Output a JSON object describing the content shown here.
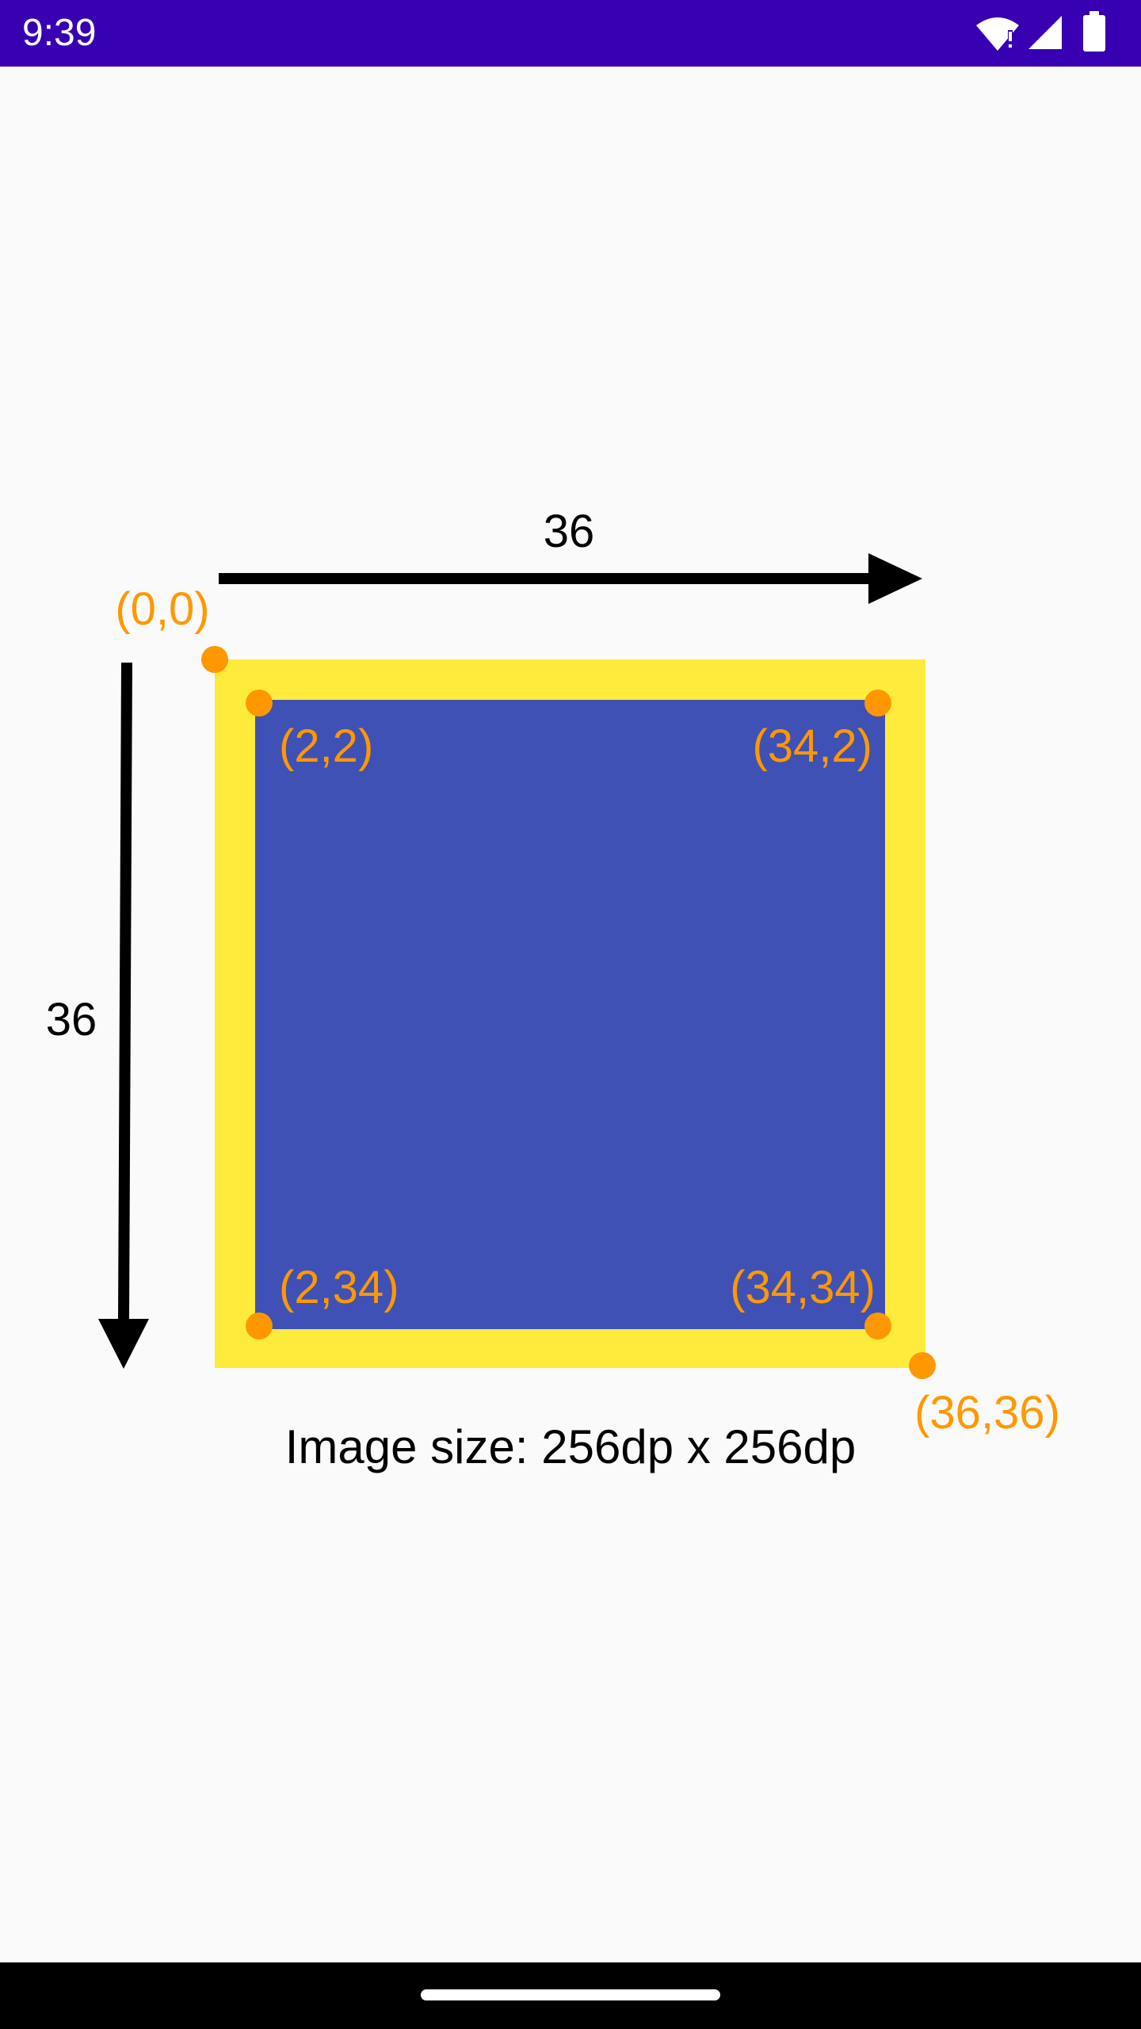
{
  "status_bar": {
    "time": "9:39",
    "icons": [
      "wifi-icon",
      "signal-icon",
      "battery-icon"
    ],
    "background_color": "#3700b3"
  },
  "diagram": {
    "outer_square_color": "#ffeb3b",
    "inner_square_color": "#3f51b5",
    "point_color": "#ff9800",
    "width_label": "36",
    "height_label": "36",
    "points": {
      "origin": "(0,0)",
      "top_left_inner": "(2,2)",
      "top_right_inner": "(34,2)",
      "bottom_left_inner": "(2,34)",
      "bottom_right_inner": "(34,34)",
      "bottom_right_outer": "(36,36)"
    }
  },
  "caption": "Image size: 256dp x 256dp",
  "nav_bar": {
    "home_indicator": "home-indicator"
  }
}
